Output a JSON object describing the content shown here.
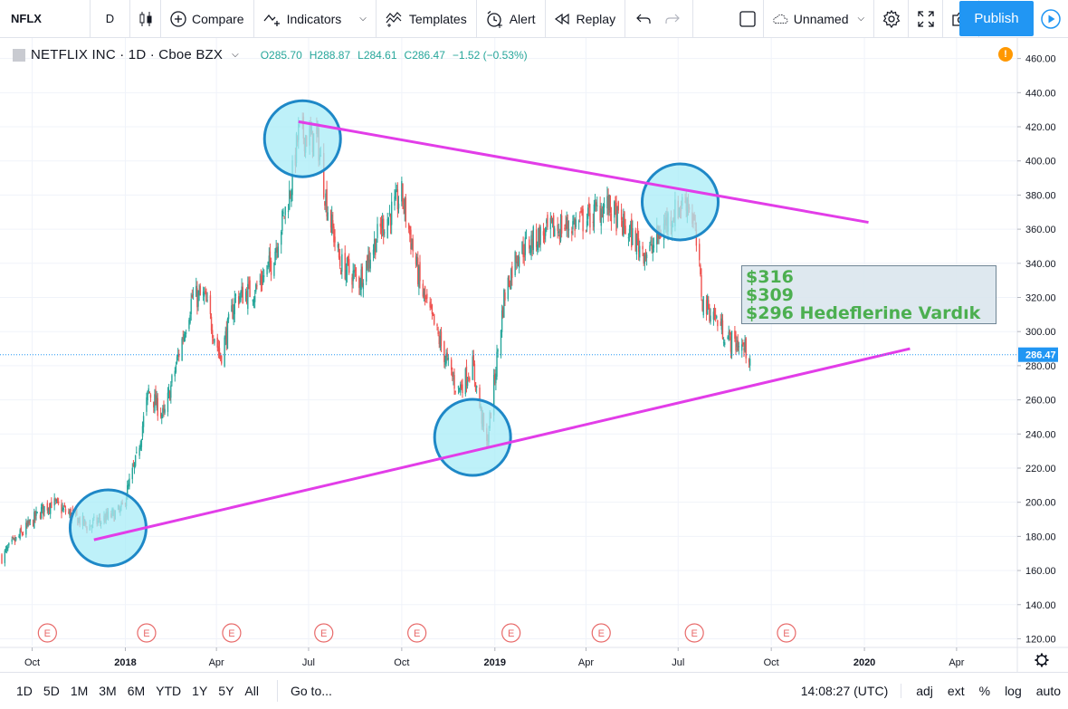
{
  "toolbar": {
    "symbol": "NFLX",
    "interval": "D",
    "compare": "Compare",
    "indicators": "Indicators",
    "templates": "Templates",
    "alert": "Alert",
    "replay": "Replay",
    "layout_name": "Unnamed",
    "publish": "Publish"
  },
  "legend": {
    "title": "NETFLIX INC · 1D · Cboe BZX",
    "open": "O285.70",
    "high": "H288.87",
    "low": "L284.61",
    "close": "C286.47",
    "change": "−1.52 (−0.53%)"
  },
  "annotation": {
    "line1": "$316",
    "line2": "$309",
    "line3": "$296 Hedeflerine Vardık"
  },
  "bottom": {
    "ranges": [
      "1D",
      "5D",
      "1M",
      "3M",
      "6M",
      "YTD",
      "1Y",
      "5Y",
      "All"
    ],
    "goto": "Go to...",
    "time": "14:08:27 (UTC)",
    "adj": "adj",
    "ext": "ext",
    "percent": "%",
    "log": "log",
    "auto": "auto"
  },
  "colors": {
    "up": "#26a69a",
    "down": "#ef5350",
    "trendline": "#e23de8",
    "circle_fill": "#a8ecf7",
    "circle_stroke": "#1e88c7",
    "last_price": "#2196f3",
    "earnings": "#e86a6a"
  },
  "chart_data": {
    "type": "candlestick",
    "symbol": "NETFLIX INC",
    "interval": "1D",
    "exchange": "Cboe BZX",
    "last_price": 286.47,
    "last_price_label": "286.47",
    "y_range": [
      116,
      472
    ],
    "y_ticks": [
      120,
      140,
      160,
      180,
      200,
      220,
      240,
      260,
      280,
      300,
      320,
      340,
      360,
      380,
      400,
      420,
      440,
      460
    ],
    "y_tick_labels": [
      "120.00",
      "140.00",
      "160.00",
      "180.00",
      "200.00",
      "220.00",
      "240.00",
      "260.00",
      "280.00",
      "300.00",
      "320.00",
      "340.00",
      "360.00",
      "380.00",
      "400.00",
      "420.00",
      "440.00",
      "460.00"
    ],
    "x_range": [
      "2017-09-01",
      "2020-05-31"
    ],
    "x_ticks": [
      {
        "date": "2017-10-01",
        "label": "Oct"
      },
      {
        "date": "2018-01-01",
        "label": "2018"
      },
      {
        "date": "2018-04-01",
        "label": "Apr"
      },
      {
        "date": "2018-07-01",
        "label": "Jul"
      },
      {
        "date": "2018-10-01",
        "label": "Oct"
      },
      {
        "date": "2019-01-01",
        "label": "2019"
      },
      {
        "date": "2019-04-01",
        "label": "Apr"
      },
      {
        "date": "2019-07-01",
        "label": "Jul"
      },
      {
        "date": "2019-10-01",
        "label": "Oct"
      },
      {
        "date": "2020-01-01",
        "label": "2020"
      },
      {
        "date": "2020-04-01",
        "label": "Apr"
      }
    ],
    "price_path": [
      {
        "date": "2017-09-01",
        "close": 168
      },
      {
        "date": "2017-10-10",
        "close": 195
      },
      {
        "date": "2017-10-20",
        "close": 200
      },
      {
        "date": "2017-11-10",
        "close": 192
      },
      {
        "date": "2017-11-25",
        "close": 186
      },
      {
        "date": "2017-12-10",
        "close": 190
      },
      {
        "date": "2017-12-28",
        "close": 195
      },
      {
        "date": "2018-01-12",
        "close": 225
      },
      {
        "date": "2018-01-24",
        "close": 265
      },
      {
        "date": "2018-02-08",
        "close": 250
      },
      {
        "date": "2018-03-08",
        "close": 320
      },
      {
        "date": "2018-03-20",
        "close": 320
      },
      {
        "date": "2018-04-05",
        "close": 285
      },
      {
        "date": "2018-04-20",
        "close": 320
      },
      {
        "date": "2018-05-10",
        "close": 325
      },
      {
        "date": "2018-05-25",
        "close": 340
      },
      {
        "date": "2018-06-12",
        "close": 380
      },
      {
        "date": "2018-06-21",
        "close": 416
      },
      {
        "date": "2018-07-10",
        "close": 412
      },
      {
        "date": "2018-07-18",
        "close": 378
      },
      {
        "date": "2018-08-01",
        "close": 340
      },
      {
        "date": "2018-08-20",
        "close": 330
      },
      {
        "date": "2018-09-10",
        "close": 360
      },
      {
        "date": "2018-10-01",
        "close": 380
      },
      {
        "date": "2018-10-20",
        "close": 325
      },
      {
        "date": "2018-11-10",
        "close": 290
      },
      {
        "date": "2018-11-25",
        "close": 265
      },
      {
        "date": "2018-12-10",
        "close": 280
      },
      {
        "date": "2018-12-24",
        "close": 233
      },
      {
        "date": "2019-01-10",
        "close": 320
      },
      {
        "date": "2019-01-22",
        "close": 345
      },
      {
        "date": "2019-02-10",
        "close": 355
      },
      {
        "date": "2019-03-01",
        "close": 360
      },
      {
        "date": "2019-04-01",
        "close": 365
      },
      {
        "date": "2019-04-20",
        "close": 375
      },
      {
        "date": "2019-05-10",
        "close": 360
      },
      {
        "date": "2019-06-01",
        "close": 345
      },
      {
        "date": "2019-06-20",
        "close": 365
      },
      {
        "date": "2019-07-10",
        "close": 378
      },
      {
        "date": "2019-07-17",
        "close": 362
      },
      {
        "date": "2019-07-25",
        "close": 318
      },
      {
        "date": "2019-08-05",
        "close": 310
      },
      {
        "date": "2019-08-20",
        "close": 295
      },
      {
        "date": "2019-09-01",
        "close": 292
      },
      {
        "date": "2019-09-10",
        "close": 286.47
      }
    ],
    "earnings_dates": [
      "2017-10-16",
      "2018-01-22",
      "2018-04-16",
      "2018-07-16",
      "2018-10-16",
      "2019-01-17",
      "2019-04-16",
      "2019-07-17",
      "2019-10-16"
    ],
    "earnings_label": "E",
    "trendlines": [
      {
        "name": "resistance",
        "from": {
          "date": "2018-06-21",
          "price": 423
        },
        "to": {
          "date": "2020-01-05",
          "price": 364
        }
      },
      {
        "name": "support",
        "from": {
          "date": "2017-12-01",
          "price": 178
        },
        "to": {
          "date": "2020-02-15",
          "price": 290
        }
      }
    ],
    "highlight_circles": [
      {
        "date": "2017-12-15",
        "price": 185
      },
      {
        "date": "2018-06-25",
        "price": 413
      },
      {
        "date": "2018-12-10",
        "price": 238
      },
      {
        "date": "2019-07-03",
        "price": 376
      }
    ]
  }
}
